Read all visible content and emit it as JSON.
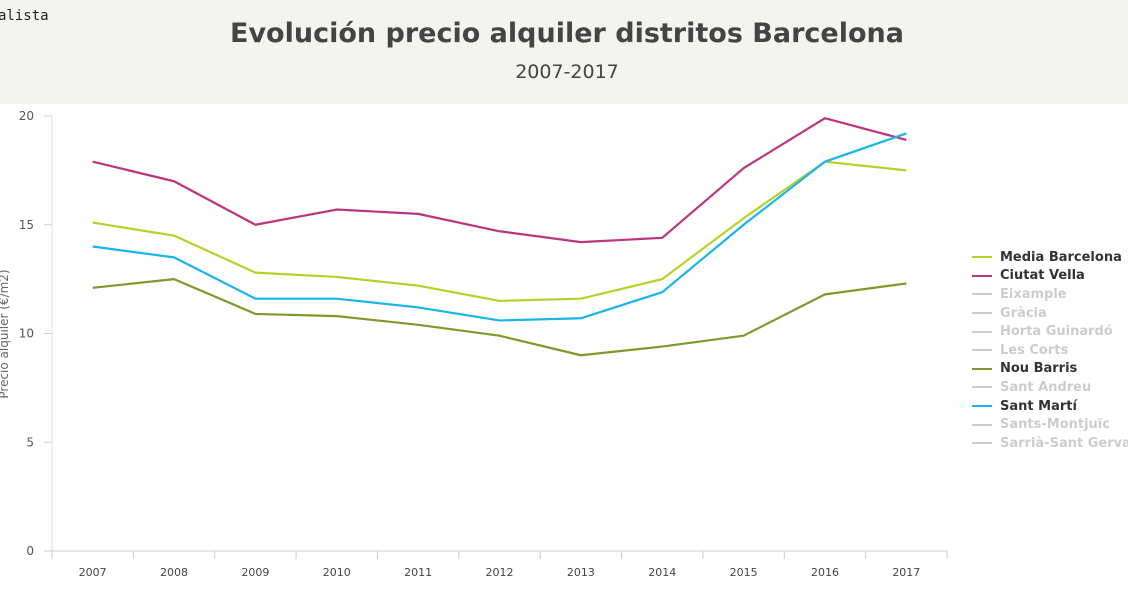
{
  "brand": "alista",
  "chart_data": {
    "type": "line",
    "title": "Evolución precio alquiler distritos Barcelona",
    "subtitle": "2007-2017",
    "ylabel": "Precio alquiler (€/m2)",
    "xlabel": "",
    "ylim": [
      0,
      20
    ],
    "yticks": [
      "0",
      "5",
      "10",
      "15",
      "20"
    ],
    "categories": [
      "2007",
      "2008",
      "2009",
      "2010",
      "2011",
      "2012",
      "2013",
      "2014",
      "2015",
      "2016",
      "2017"
    ],
    "legend_position": "right",
    "series": [
      {
        "name": "Media Barcelona",
        "color": "#b5d22b",
        "visible": true,
        "values": [
          15.1,
          14.5,
          12.8,
          12.6,
          12.2,
          11.5,
          11.6,
          12.5,
          15.3,
          17.9,
          17.5
        ]
      },
      {
        "name": "Ciutat Vella",
        "color": "#b9357f",
        "visible": true,
        "values": [
          17.9,
          17.0,
          15.0,
          15.7,
          15.5,
          14.7,
          14.2,
          14.4,
          17.6,
          19.9,
          18.9
        ]
      },
      {
        "name": "Eixample",
        "color": "#cccccc",
        "visible": false
      },
      {
        "name": "Gràcia",
        "color": "#cccccc",
        "visible": false
      },
      {
        "name": "Horta Guinardó",
        "color": "#cccccc",
        "visible": false
      },
      {
        "name": "Les Corts",
        "color": "#cccccc",
        "visible": false
      },
      {
        "name": "Nou Barris",
        "color": "#7a9a2a",
        "visible": true,
        "values": [
          12.1,
          12.5,
          10.9,
          10.8,
          10.4,
          9.9,
          9.0,
          9.4,
          9.9,
          11.8,
          12.3
        ]
      },
      {
        "name": "Sant Andreu",
        "color": "#cccccc",
        "visible": false
      },
      {
        "name": "Sant Martí",
        "color": "#1ab4ec",
        "visible": true,
        "values": [
          14.0,
          13.5,
          11.6,
          11.6,
          11.2,
          10.6,
          10.7,
          11.9,
          15.0,
          17.9,
          19.2
        ]
      },
      {
        "name": "Sants-Montjuïc",
        "color": "#cccccc",
        "visible": false
      },
      {
        "name": "Sarrià-Sant Gervasi",
        "color": "#cccccc",
        "visible": false
      }
    ]
  }
}
